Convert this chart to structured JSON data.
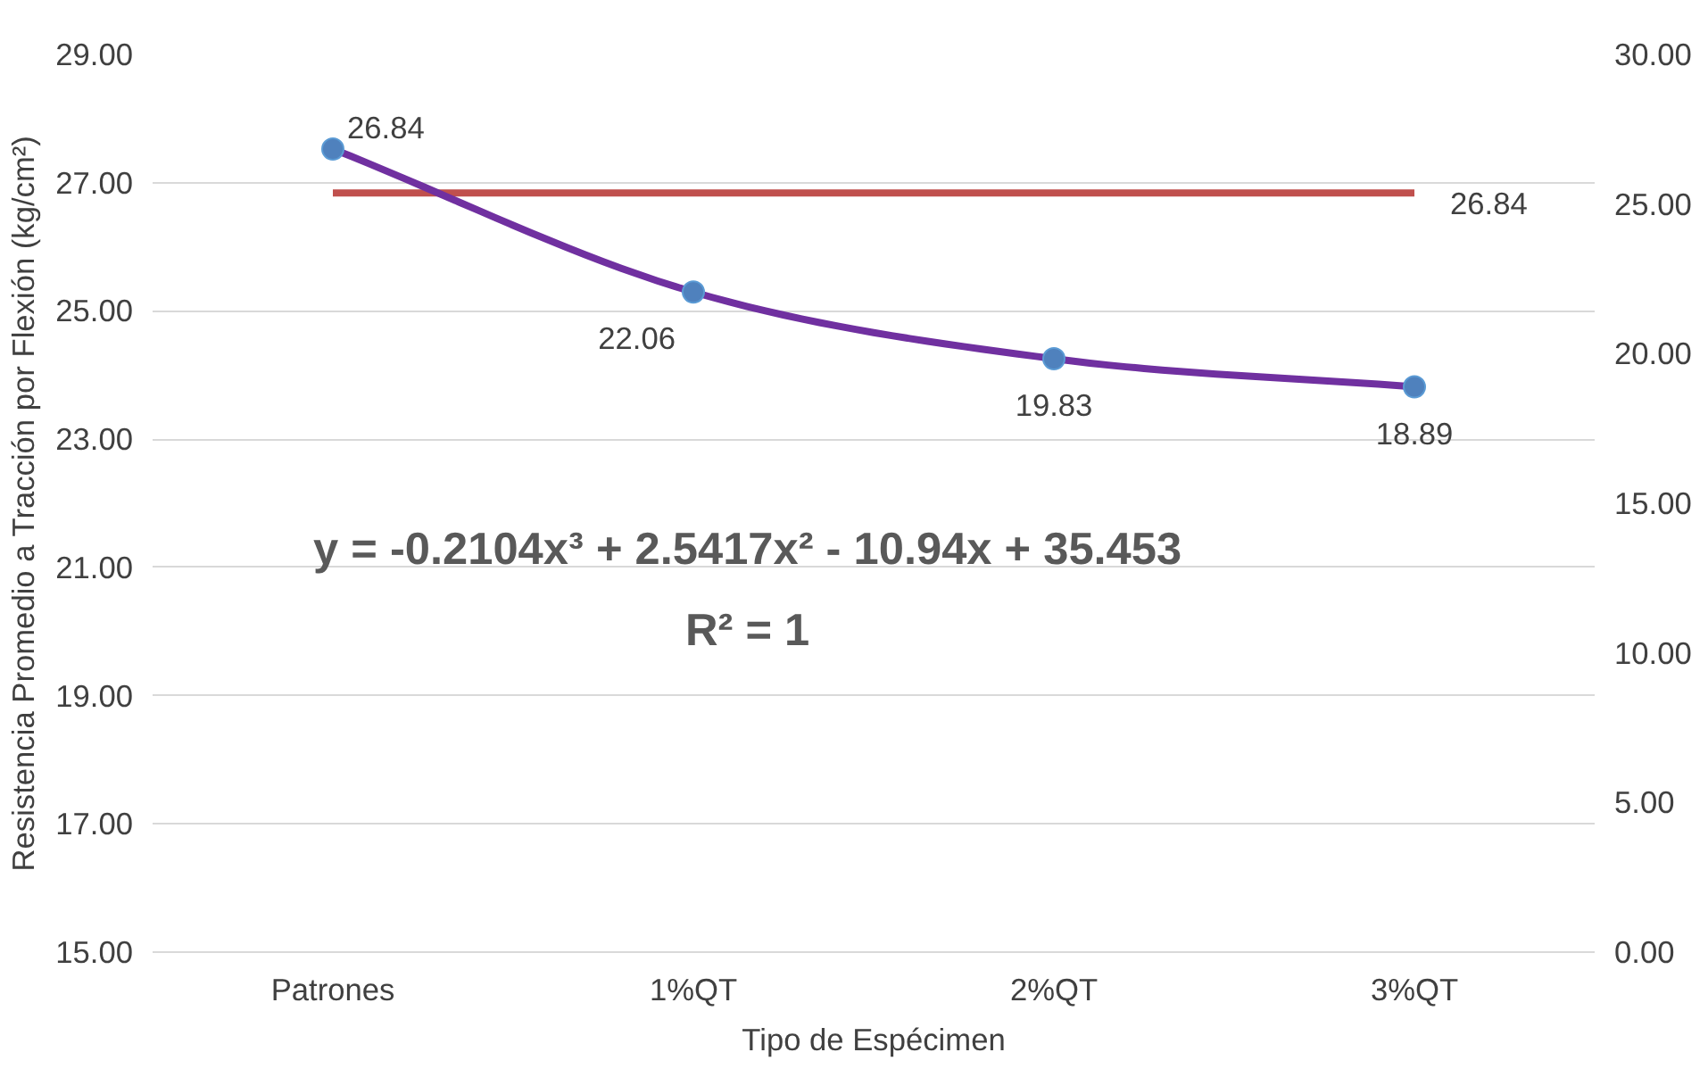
{
  "chart_data": {
    "type": "line",
    "xlabel": "Tipo de Espécimen",
    "ylabel": "Resistencia Promedio a Tracción por Flexión (kg/cm²)",
    "categories": [
      "Patrones",
      "1%QT",
      "2%QT",
      "3%QT"
    ],
    "ylim": [
      15,
      29
    ],
    "yticks": [
      {
        "value": 15,
        "label": "15.00"
      },
      {
        "value": 17,
        "label": "17.00"
      },
      {
        "value": 19,
        "label": "19.00"
      },
      {
        "value": 21,
        "label": "21.00"
      },
      {
        "value": 23,
        "label": "23.00"
      },
      {
        "value": 25,
        "label": "25.00"
      },
      {
        "value": 27,
        "label": "27.00"
      },
      {
        "value": 29,
        "label": "29.00"
      }
    ],
    "y2lim": [
      0,
      30
    ],
    "y2ticks": [
      {
        "value": 0,
        "label": "0.00"
      },
      {
        "value": 5,
        "label": "5.00"
      },
      {
        "value": 10,
        "label": "10.00"
      },
      {
        "value": 15,
        "label": "15.00"
      },
      {
        "value": 20,
        "label": "20.00"
      },
      {
        "value": 25,
        "label": "25.00"
      },
      {
        "value": 30,
        "label": "30.00"
      }
    ],
    "grid": "y",
    "series": [
      {
        "color": "#c0504d",
        "values": [
          26.84,
          26.84,
          26.84,
          26.84
        ],
        "value_labels": [
          null,
          null,
          null,
          "26.84"
        ]
      },
      {
        "axis": "y2",
        "color": "#7030a0",
        "values": [
          26.84,
          22.06,
          19.83,
          18.89
        ]
      },
      {
        "type": "scatter",
        "axis": "y2",
        "color": "#4f81bd",
        "marker": "circle",
        "values": [
          26.84,
          22.06,
          19.83,
          18.89
        ],
        "value_labels": [
          "26.84",
          "22.06",
          "19.83",
          "18.89"
        ]
      }
    ],
    "annotations": [
      "y = -0.2104x³ + 2.5417x² - 10.94x + 35.453",
      "R² = 1"
    ]
  }
}
